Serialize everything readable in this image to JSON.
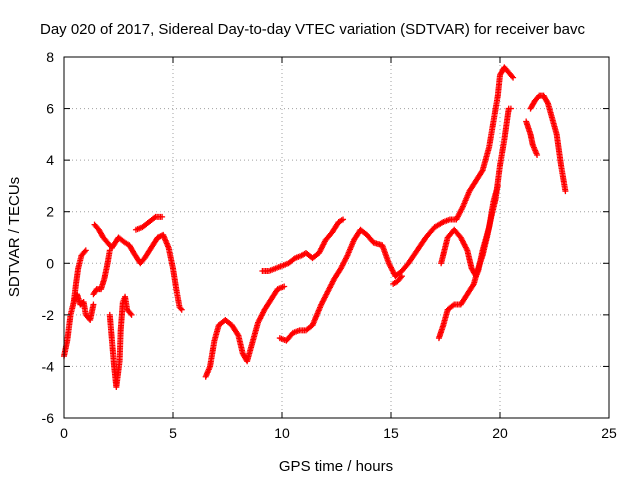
{
  "chart_data": {
    "type": "scatter",
    "title": "Day 020 of 2017, Sidereal Day-to-day VTEC variation (SDTVAR) for receiver bavc",
    "xlabel": "GPS time / hours",
    "ylabel": "SDTVAR / TECUs",
    "xlim": [
      0,
      25
    ],
    "ylim": [
      -6,
      8
    ],
    "xticks": [
      "0",
      "5",
      "10",
      "15",
      "20",
      "25"
    ],
    "yticks": [
      "-6",
      "-4",
      "-2",
      "0",
      "2",
      "4",
      "6",
      "8"
    ],
    "grid": true,
    "marker": "plus",
    "color": "#ff0000",
    "series": [
      {
        "points": [
          [
            0.0,
            -3.6
          ],
          [
            0.15,
            -3.0
          ],
          [
            0.3,
            -2.0
          ],
          [
            0.45,
            -1.5
          ],
          [
            0.6,
            -1.2
          ],
          [
            0.75,
            -1.6
          ],
          [
            0.9,
            -1.5
          ],
          [
            1.0,
            -2.0
          ],
          [
            1.2,
            -2.2
          ],
          [
            1.35,
            -1.6
          ]
        ]
      },
      {
        "points": [
          [
            0.45,
            -1.5
          ],
          [
            0.55,
            -0.8
          ],
          [
            0.65,
            -0.2
          ],
          [
            0.8,
            0.3
          ],
          [
            1.0,
            0.5
          ]
        ]
      },
      {
        "points": [
          [
            1.35,
            -1.2
          ],
          [
            1.5,
            -1.0
          ],
          [
            1.7,
            -1.0
          ],
          [
            1.85,
            -0.6
          ],
          [
            2.0,
            0.0
          ],
          [
            2.1,
            0.5
          ]
        ]
      },
      {
        "points": [
          [
            2.1,
            -2.0
          ],
          [
            2.2,
            -3.0
          ],
          [
            2.3,
            -4.0
          ],
          [
            2.4,
            -4.8
          ],
          [
            2.55,
            -3.8
          ],
          [
            2.6,
            -2.6
          ],
          [
            2.7,
            -1.5
          ],
          [
            2.8,
            -1.3
          ],
          [
            2.9,
            -1.8
          ],
          [
            3.1,
            -2.0
          ]
        ]
      },
      {
        "points": [
          [
            1.4,
            1.5
          ],
          [
            1.6,
            1.3
          ],
          [
            1.8,
            1.0
          ],
          [
            2.0,
            0.8
          ],
          [
            2.2,
            0.6
          ],
          [
            2.5,
            1.0
          ],
          [
            2.8,
            0.8
          ],
          [
            3.0,
            0.7
          ],
          [
            3.2,
            0.4
          ],
          [
            3.5,
            0.0
          ],
          [
            3.7,
            0.2
          ],
          [
            4.0,
            0.6
          ],
          [
            4.3,
            1.0
          ],
          [
            4.55,
            1.1
          ],
          [
            4.8,
            0.6
          ],
          [
            5.0,
            -0.2
          ],
          [
            5.15,
            -1.0
          ],
          [
            5.3,
            -1.7
          ],
          [
            5.4,
            -1.8
          ]
        ]
      },
      {
        "points": [
          [
            3.3,
            1.3
          ],
          [
            3.6,
            1.4
          ],
          [
            3.9,
            1.6
          ],
          [
            4.2,
            1.8
          ],
          [
            4.5,
            1.8
          ]
        ]
      },
      {
        "points": [
          [
            6.5,
            -4.4
          ],
          [
            6.7,
            -4.0
          ],
          [
            6.9,
            -3.0
          ],
          [
            7.1,
            -2.4
          ],
          [
            7.4,
            -2.2
          ],
          [
            7.7,
            -2.4
          ],
          [
            8.0,
            -2.8
          ],
          [
            8.2,
            -3.5
          ],
          [
            8.4,
            -3.8
          ],
          [
            8.6,
            -3.2
          ],
          [
            8.9,
            -2.3
          ],
          [
            9.2,
            -1.8
          ],
          [
            9.5,
            -1.4
          ],
          [
            9.8,
            -1.0
          ],
          [
            10.1,
            -0.9
          ]
        ]
      },
      {
        "points": [
          [
            9.1,
            -0.3
          ],
          [
            9.4,
            -0.3
          ],
          [
            9.7,
            -0.2
          ],
          [
            10.0,
            -0.1
          ],
          [
            10.3,
            0.0
          ],
          [
            10.6,
            0.2
          ],
          [
            10.9,
            0.3
          ],
          [
            11.1,
            0.4
          ],
          [
            11.4,
            0.2
          ],
          [
            11.7,
            0.4
          ],
          [
            12.0,
            0.9
          ],
          [
            12.3,
            1.2
          ],
          [
            12.6,
            1.6
          ],
          [
            12.8,
            1.7
          ]
        ]
      },
      {
        "points": [
          [
            9.9,
            -2.9
          ],
          [
            10.2,
            -3.0
          ],
          [
            10.5,
            -2.7
          ],
          [
            10.8,
            -2.6
          ],
          [
            11.1,
            -2.6
          ],
          [
            11.4,
            -2.4
          ],
          [
            11.8,
            -1.6
          ],
          [
            12.1,
            -1.1
          ],
          [
            12.4,
            -0.6
          ],
          [
            12.7,
            -0.2
          ],
          [
            13.0,
            0.3
          ],
          [
            13.3,
            0.9
          ],
          [
            13.6,
            1.3
          ],
          [
            13.9,
            1.1
          ],
          [
            14.2,
            0.8
          ],
          [
            14.6,
            0.7
          ],
          [
            14.9,
            0.0
          ],
          [
            15.2,
            -0.5
          ],
          [
            15.5,
            -0.3
          ],
          [
            15.8,
            0.0
          ],
          [
            16.2,
            0.5
          ],
          [
            16.6,
            1.0
          ],
          [
            17.0,
            1.4
          ],
          [
            17.4,
            1.6
          ],
          [
            17.7,
            1.7
          ],
          [
            18.0,
            1.7
          ],
          [
            18.3,
            2.2
          ],
          [
            18.6,
            2.8
          ],
          [
            18.9,
            3.2
          ],
          [
            19.2,
            3.6
          ],
          [
            19.5,
            4.5
          ],
          [
            19.7,
            5.5
          ],
          [
            19.9,
            6.5
          ],
          [
            20.0,
            7.3
          ],
          [
            20.2,
            7.6
          ],
          [
            20.4,
            7.4
          ],
          [
            20.6,
            7.2
          ]
        ]
      },
      {
        "points": [
          [
            15.1,
            -0.8
          ],
          [
            15.3,
            -0.7
          ],
          [
            15.5,
            -0.5
          ]
        ]
      },
      {
        "points": [
          [
            17.2,
            -2.9
          ],
          [
            17.4,
            -2.4
          ],
          [
            17.6,
            -1.8
          ],
          [
            17.9,
            -1.6
          ],
          [
            18.2,
            -1.6
          ],
          [
            18.5,
            -1.2
          ],
          [
            18.8,
            -0.8
          ],
          [
            19.0,
            -0.2
          ],
          [
            19.2,
            0.3
          ],
          [
            19.4,
            1.0
          ],
          [
            19.6,
            1.8
          ],
          [
            19.8,
            2.5
          ],
          [
            20.0,
            3.8
          ],
          [
            20.2,
            4.8
          ],
          [
            20.4,
            6.0
          ],
          [
            20.5,
            6.0
          ]
        ]
      },
      {
        "points": [
          [
            17.3,
            0.0
          ],
          [
            17.6,
            1.0
          ],
          [
            17.9,
            1.3
          ],
          [
            18.2,
            1.0
          ],
          [
            18.5,
            0.5
          ],
          [
            18.7,
            -0.2
          ],
          [
            18.9,
            -0.5
          ],
          [
            19.0,
            -0.3
          ],
          [
            19.2,
            0.5
          ],
          [
            19.5,
            1.4
          ],
          [
            19.7,
            2.4
          ],
          [
            19.9,
            3.0
          ]
        ]
      },
      {
        "points": [
          [
            21.2,
            5.5
          ],
          [
            21.4,
            5.0
          ],
          [
            21.5,
            4.6
          ],
          [
            21.7,
            4.2
          ]
        ]
      },
      {
        "points": [
          [
            21.4,
            6.0
          ],
          [
            21.6,
            6.3
          ],
          [
            21.8,
            6.5
          ],
          [
            22.0,
            6.5
          ],
          [
            22.2,
            6.2
          ],
          [
            22.4,
            5.6
          ],
          [
            22.6,
            5.0
          ],
          [
            22.8,
            3.8
          ],
          [
            23.0,
            2.8
          ]
        ]
      }
    ]
  }
}
